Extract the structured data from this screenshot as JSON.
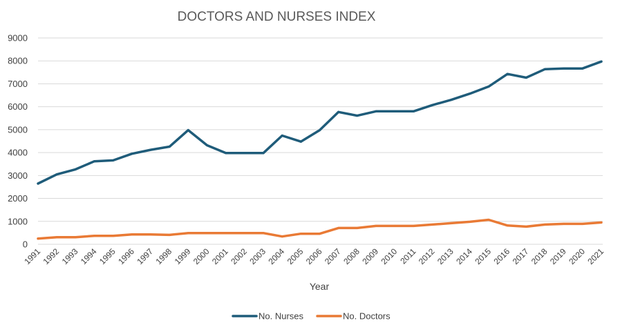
{
  "chart_data": {
    "type": "line",
    "title": "DOCTORS AND NURSES INDEX",
    "xlabel": "Year",
    "ylabel": "",
    "ylim": [
      0,
      9000
    ],
    "y_ticks": [
      "0",
      "1000",
      "2000",
      "3000",
      "4000",
      "5000",
      "6000",
      "7000",
      "8000",
      "9000"
    ],
    "grid": true,
    "legend_position": "bottom",
    "x": [
      "1991",
      "1992",
      "1993",
      "1994",
      "1995",
      "1996",
      "1997",
      "1998",
      "1999",
      "2000",
      "2001",
      "2002",
      "2003",
      "2004",
      "2005",
      "2006",
      "2007",
      "2008",
      "2009",
      "2010",
      "2011",
      "2012",
      "2013",
      "2014",
      "2015",
      "2016",
      "2017",
      "2018",
      "2019",
      "2020",
      "2021"
    ],
    "series": [
      {
        "name": "No. Nurses",
        "color": "#1f5c7a",
        "values": [
          2650,
          3050,
          3270,
          3620,
          3660,
          3950,
          4120,
          4260,
          4980,
          4320,
          3980,
          3980,
          3980,
          4740,
          4480,
          4980,
          5770,
          5610,
          5800,
          5800,
          5800,
          6070,
          6300,
          6570,
          6880,
          7430,
          7270,
          7640,
          7670,
          7670,
          7970
        ]
      },
      {
        "name": "No. Doctors",
        "color": "#e97a35",
        "values": [
          250,
          310,
          310,
          370,
          370,
          430,
          430,
          410,
          490,
          490,
          490,
          490,
          490,
          340,
          460,
          460,
          710,
          710,
          800,
          800,
          800,
          860,
          920,
          980,
          1070,
          820,
          770,
          860,
          890,
          890,
          950
        ]
      }
    ]
  }
}
